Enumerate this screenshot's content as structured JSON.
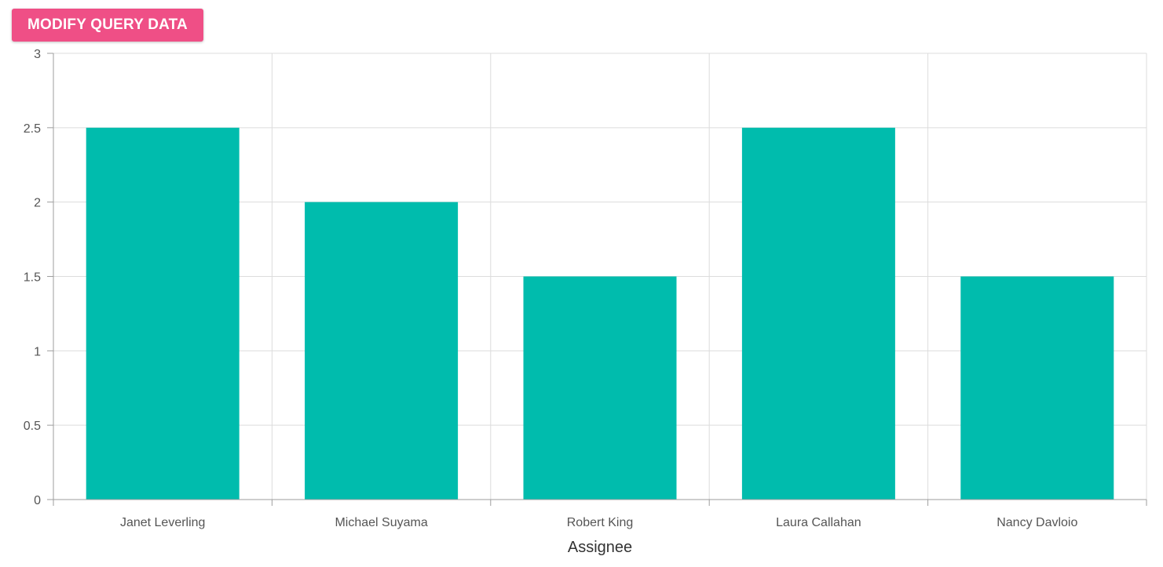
{
  "toolbar": {
    "modify_button_label": "MODIFY QUERY DATA"
  },
  "colors": {
    "bar": "#00bcad",
    "button": "#ef4f86",
    "grid": "#dcdcdc",
    "axis": "#9e9e9e"
  },
  "chart_data": {
    "type": "bar",
    "categories": [
      "Janet Leverling",
      "Michael Suyama",
      "Robert King",
      "Laura Callahan",
      "Nancy Davloio"
    ],
    "values": [
      2.5,
      2,
      1.5,
      2.5,
      1.5
    ],
    "title": "",
    "xlabel": "Assignee",
    "ylabel": "",
    "ylim": [
      0,
      3
    ],
    "yticks": [
      0,
      0.5,
      1,
      1.5,
      2,
      2.5,
      3
    ],
    "ytick_labels": [
      "0",
      "0.5",
      "1",
      "1.5",
      "2",
      "2.5",
      "3"
    ],
    "grid": true,
    "legend": "none"
  }
}
